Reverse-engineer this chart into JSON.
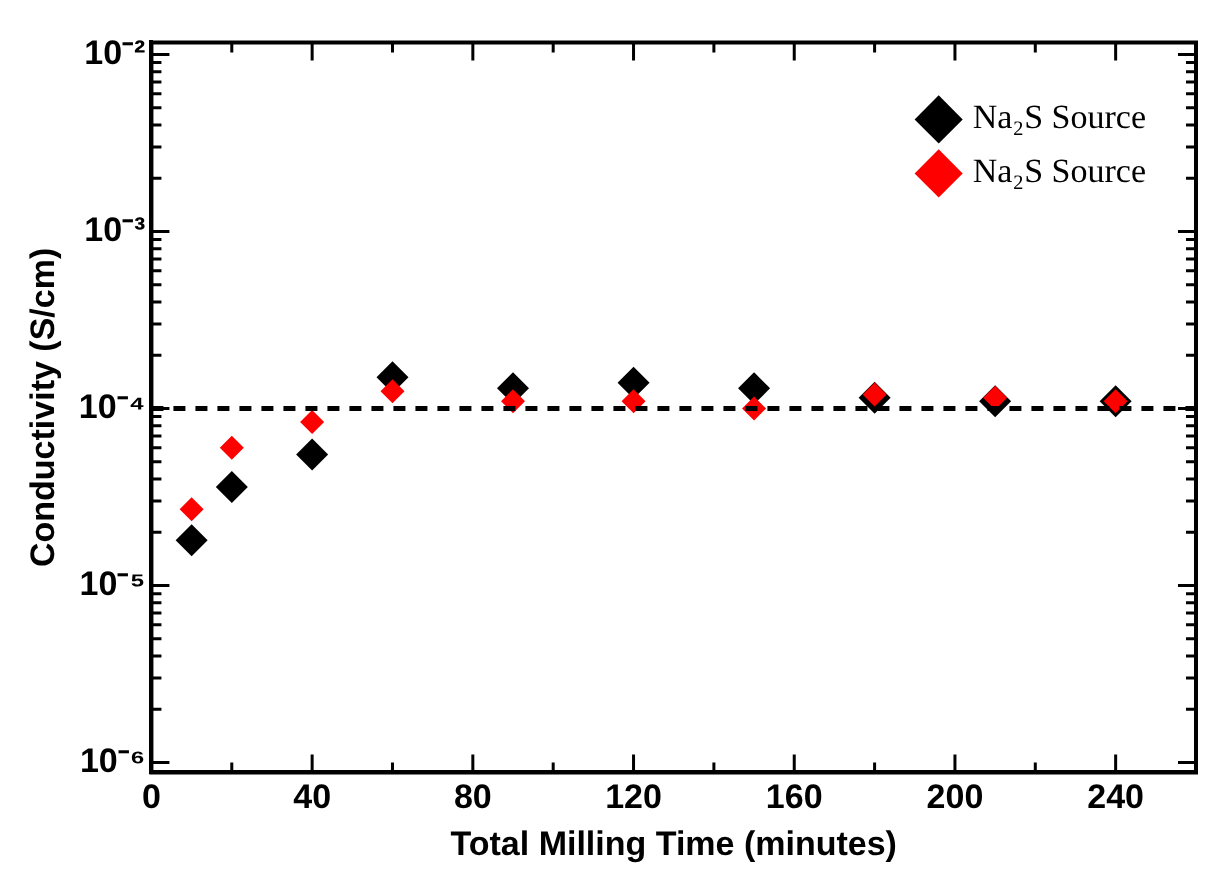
{
  "chart_data": {
    "type": "scatter",
    "xlabel": "Total Milling Time (minutes)",
    "ylabel": "Conductivity (S/cm)",
    "x": [
      10,
      20,
      40,
      60,
      90,
      120,
      150,
      180,
      210,
      240
    ],
    "series": [
      {
        "name": "Na₂S Source",
        "color": "#000000",
        "values": [
          1.8e-05,
          3.6e-05,
          5.5e-05,
          0.00015,
          0.00013,
          0.00014,
          0.00013,
          0.000115,
          0.00011,
          0.00011
        ]
      },
      {
        "name": "Na₂S Source",
        "color": "#ff0000",
        "values": [
          2.7e-05,
          6e-05,
          8.4e-05,
          0.000125,
          0.00011,
          0.00011,
          0.0001,
          0.00012,
          0.000115,
          0.00011
        ]
      }
    ],
    "xlim": [
      0,
      260
    ],
    "ylim": [
      8.8e-07,
      0.0117
    ],
    "xticks": [
      0,
      {
        "value": 20,
        "label": null
      },
      40,
      {
        "value": 60,
        "label": null
      },
      80,
      {
        "value": 100,
        "label": null
      },
      120,
      {
        "value": 140,
        "label": null
      },
      160,
      {
        "value": 180,
        "label": null
      },
      200,
      {
        "value": 220,
        "label": null
      },
      240
    ],
    "yticks": [
      {
        "value": 1e-06,
        "label": "10⁻⁶"
      },
      {
        "value": 2e-06,
        "label": null
      },
      {
        "value": 3e-06,
        "label": null
      },
      {
        "value": 4e-06,
        "label": null
      },
      {
        "value": 5e-06,
        "label": null
      },
      {
        "value": 6e-06,
        "label": null
      },
      {
        "value": 7e-06,
        "label": null
      },
      {
        "value": 8e-06,
        "label": null
      },
      {
        "value": 9e-06,
        "label": null
      },
      {
        "value": 1e-05,
        "label": "10⁻⁵"
      },
      {
        "value": 2e-05,
        "label": null
      },
      {
        "value": 3e-05,
        "label": null
      },
      {
        "value": 4e-05,
        "label": null
      },
      {
        "value": 5e-05,
        "label": null
      },
      {
        "value": 6e-05,
        "label": null
      },
      {
        "value": 7e-05,
        "label": null
      },
      {
        "value": 8e-05,
        "label": null
      },
      {
        "value": 9e-05,
        "label": null
      },
      {
        "value": 0.0001,
        "label": "10⁻⁴"
      },
      {
        "value": 0.0002,
        "label": null
      },
      {
        "value": 0.0003,
        "label": null
      },
      {
        "value": 0.0004,
        "label": null
      },
      {
        "value": 0.0005,
        "label": null
      },
      {
        "value": 0.0006,
        "label": null
      },
      {
        "value": 0.0007,
        "label": null
      },
      {
        "value": 0.0008,
        "label": null
      },
      {
        "value": 0.0009,
        "label": null
      },
      {
        "value": 0.001,
        "label": "10⁻³"
      },
      {
        "value": 0.002,
        "label": null
      },
      {
        "value": 0.003,
        "label": null
      },
      {
        "value": 0.004,
        "label": null
      },
      {
        "value": 0.005,
        "label": null
      },
      {
        "value": 0.006,
        "label": null
      },
      {
        "value": 0.007,
        "label": null
      },
      {
        "value": 0.008,
        "label": null
      },
      {
        "value": 0.009,
        "label": null
      },
      {
        "value": 0.01,
        "label": "10⁻²"
      }
    ],
    "log": "y",
    "grid": false,
    "legend": "top right",
    "marker": "diamond",
    "ref_lines": [
      {
        "axis": "y",
        "value": 0.0001,
        "color": "#000000",
        "line_style": "dashed"
      }
    ]
  }
}
